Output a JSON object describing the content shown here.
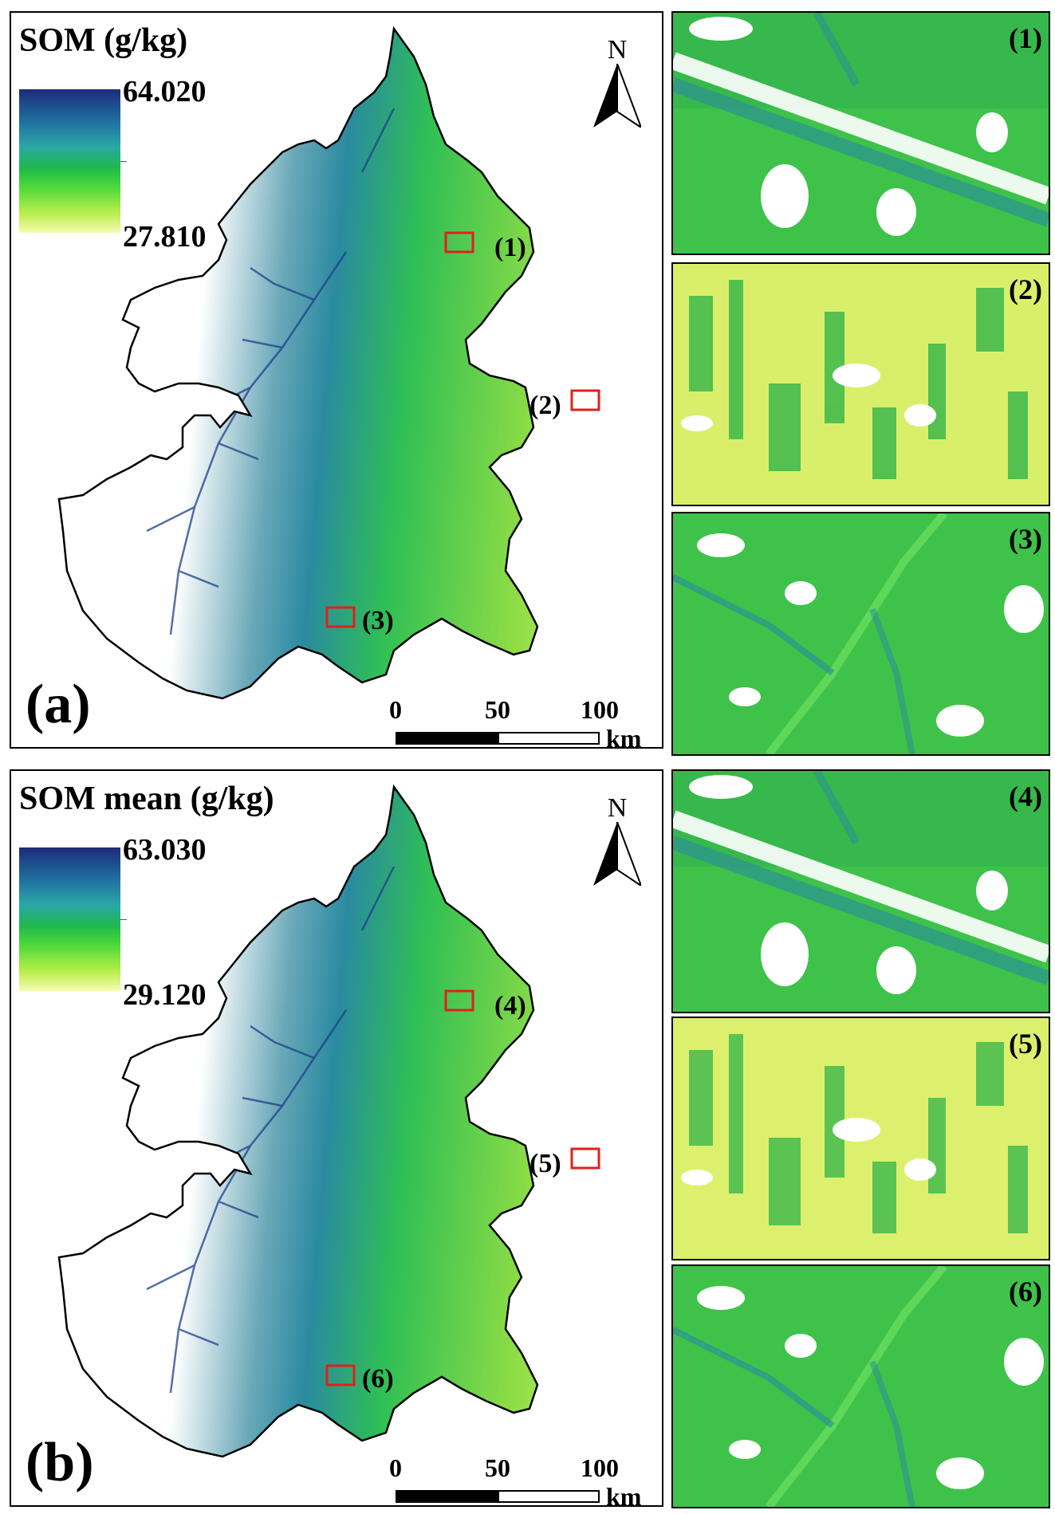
{
  "panel_a": {
    "legend_title": "SOM (g/kg)",
    "legend_max": "64.020",
    "legend_min": "27.810",
    "panel_label": "(a)",
    "north": "N",
    "scale_labels": [
      "0",
      "50",
      "100"
    ],
    "scale_unit": "km",
    "markers": [
      "(1)",
      "(2)",
      "(3)"
    ]
  },
  "panel_b": {
    "legend_title": "SOM mean (g/kg)",
    "legend_max": "63.030",
    "legend_min": "29.120",
    "panel_label": "(b)",
    "north": "N",
    "scale_labels": [
      "0",
      "50",
      "100"
    ],
    "scale_unit": "km",
    "markers": [
      "(4)",
      "(5)",
      "(6)"
    ]
  },
  "insets": [
    {
      "label": "(1)",
      "pattern": "diagonal-river"
    },
    {
      "label": "(2)",
      "pattern": "fields-light"
    },
    {
      "label": "(3)",
      "pattern": "dendritic"
    },
    {
      "label": "(4)",
      "pattern": "diagonal-river"
    },
    {
      "label": "(5)",
      "pattern": "fields-light"
    },
    {
      "label": "(6)",
      "pattern": "dendritic"
    }
  ],
  "colors": {
    "high": "#1d2b7a",
    "mid": "#2aa7a6",
    "green": "#1fb94b",
    "low": "#f7fbb0",
    "marker": "#e0201b"
  }
}
